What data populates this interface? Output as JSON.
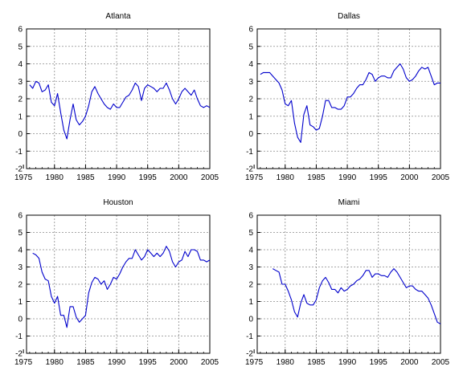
{
  "colors": {
    "line": "#0000cc",
    "grid": "#8a8a8a",
    "frame": "#000000"
  },
  "chart_data": [
    {
      "type": "line",
      "title": "Atlanta",
      "xlabel": "",
      "ylabel": "",
      "xlim": [
        1975.5,
        2005.0
      ],
      "ylim": [
        -2,
        6
      ],
      "xticks": [
        "1975",
        "1980",
        "1985",
        "1990",
        "1995",
        "2000",
        "2005"
      ],
      "yticks": [
        "-2",
        "-1",
        "0",
        "1",
        "2",
        "3",
        "4",
        "5",
        "6"
      ],
      "grid": true,
      "series": [
        {
          "x": [
            1976.0,
            1976.5,
            1977.0,
            1977.5,
            1978.0,
            1978.5,
            1979.0,
            1979.5,
            1980.0,
            1980.5,
            1981.0,
            1981.5,
            1982.0,
            1982.5,
            1983.0,
            1983.5,
            1984.0,
            1984.5,
            1985.0,
            1985.5,
            1986.0,
            1986.5,
            1987.0,
            1987.5,
            1988.0,
            1988.5,
            1989.0,
            1989.5,
            1990.0,
            1990.5,
            1991.0,
            1991.5,
            1992.0,
            1992.5,
            1993.0,
            1993.5,
            1994.0,
            1994.5,
            1995.0,
            1995.5,
            1996.0,
            1996.5,
            1997.0,
            1997.5,
            1998.0,
            1998.5,
            1999.0,
            1999.5,
            2000.0,
            2000.5,
            2001.0,
            2001.5,
            2002.0,
            2002.5,
            2003.0,
            2003.5,
            2004.0,
            2004.5,
            2005.0
          ],
          "y": [
            2.8,
            2.6,
            3.0,
            2.9,
            2.4,
            2.5,
            2.8,
            1.8,
            1.6,
            2.3,
            1.2,
            0.2,
            -0.3,
            0.8,
            1.7,
            0.8,
            0.5,
            0.7,
            1.0,
            1.6,
            2.4,
            2.7,
            2.3,
            2.0,
            1.7,
            1.5,
            1.4,
            1.7,
            1.5,
            1.5,
            1.8,
            2.1,
            2.2,
            2.5,
            2.9,
            2.7,
            1.9,
            2.6,
            2.8,
            2.7,
            2.6,
            2.4,
            2.6,
            2.6,
            2.9,
            2.5,
            2.0,
            1.7,
            2.0,
            2.4,
            2.6,
            2.4,
            2.2,
            2.5,
            2.0,
            1.6,
            1.5,
            1.6,
            1.5
          ]
        }
      ]
    },
    {
      "type": "line",
      "title": "Dallas",
      "xlabel": "",
      "ylabel": "",
      "xlim": [
        1975.5,
        2005.0
      ],
      "ylim": [
        -2,
        6
      ],
      "xticks": [
        "1975",
        "1980",
        "1985",
        "1990",
        "1995",
        "2000",
        "2005"
      ],
      "yticks": [
        "-2",
        "-1",
        "0",
        "1",
        "2",
        "3",
        "4",
        "5",
        "6"
      ],
      "grid": true,
      "series": [
        {
          "x": [
            1976.0,
            1976.5,
            1977.0,
            1977.5,
            1978.0,
            1978.5,
            1979.0,
            1979.5,
            1980.0,
            1980.5,
            1981.0,
            1981.5,
            1982.0,
            1982.5,
            1983.0,
            1983.5,
            1984.0,
            1984.5,
            1985.0,
            1985.5,
            1986.0,
            1986.5,
            1987.0,
            1987.5,
            1988.0,
            1988.5,
            1989.0,
            1989.5,
            1990.0,
            1990.5,
            1991.0,
            1991.5,
            1992.0,
            1992.5,
            1993.0,
            1993.5,
            1994.0,
            1994.5,
            1995.0,
            1995.5,
            1996.0,
            1996.5,
            1997.0,
            1997.5,
            1998.0,
            1998.5,
            1999.0,
            1999.5,
            2000.0,
            2000.5,
            2001.0,
            2001.5,
            2002.0,
            2002.5,
            2003.0,
            2003.5,
            2004.0,
            2004.5,
            2005.0
          ],
          "y": [
            3.4,
            3.5,
            3.5,
            3.5,
            3.3,
            3.1,
            2.9,
            2.5,
            1.7,
            1.6,
            1.9,
            0.6,
            -0.2,
            -0.5,
            1.1,
            1.6,
            0.5,
            0.4,
            0.2,
            0.3,
            1.0,
            1.9,
            1.9,
            1.5,
            1.5,
            1.4,
            1.4,
            1.6,
            2.1,
            2.1,
            2.3,
            2.6,
            2.8,
            2.8,
            3.1,
            3.5,
            3.4,
            3.0,
            3.2,
            3.3,
            3.3,
            3.2,
            3.2,
            3.6,
            3.8,
            4.0,
            3.7,
            3.2,
            3.0,
            3.1,
            3.3,
            3.6,
            3.8,
            3.7,
            3.8,
            3.3,
            2.8,
            2.9,
            2.9
          ]
        }
      ]
    },
    {
      "type": "line",
      "title": "Houston",
      "xlabel": "",
      "ylabel": "",
      "xlim": [
        1975.5,
        2005.0
      ],
      "ylim": [
        -2,
        6
      ],
      "xticks": [
        "1975",
        "1980",
        "1985",
        "1990",
        "1995",
        "2000",
        "2005"
      ],
      "yticks": [
        "-2",
        "-1",
        "0",
        "1",
        "2",
        "3",
        "4",
        "5",
        "6"
      ],
      "grid": true,
      "series": [
        {
          "x": [
            1976.5,
            1977.0,
            1977.5,
            1978.0,
            1978.5,
            1979.0,
            1979.5,
            1980.0,
            1980.5,
            1981.0,
            1981.5,
            1982.0,
            1982.5,
            1983.0,
            1983.5,
            1984.0,
            1984.5,
            1985.0,
            1985.5,
            1986.0,
            1986.5,
            1987.0,
            1987.5,
            1988.0,
            1988.5,
            1989.0,
            1989.5,
            1990.0,
            1990.5,
            1991.0,
            1991.5,
            1992.0,
            1992.5,
            1993.0,
            1993.5,
            1994.0,
            1994.5,
            1995.0,
            1995.5,
            1996.0,
            1996.5,
            1997.0,
            1997.5,
            1998.0,
            1998.5,
            1999.0,
            1999.5,
            2000.0,
            2000.5,
            2001.0,
            2001.5,
            2002.0,
            2002.5,
            2003.0,
            2003.5,
            2004.0,
            2004.5,
            2005.0
          ],
          "y": [
            3.8,
            3.7,
            3.5,
            2.7,
            2.3,
            2.2,
            1.3,
            0.9,
            1.3,
            0.2,
            0.2,
            -0.5,
            0.7,
            0.7,
            0.1,
            -0.2,
            0.0,
            0.2,
            1.5,
            2.1,
            2.4,
            2.3,
            2.0,
            2.2,
            1.7,
            2.0,
            2.4,
            2.3,
            2.6,
            3.0,
            3.3,
            3.5,
            3.5,
            4.0,
            3.7,
            3.4,
            3.6,
            4.0,
            3.8,
            3.6,
            3.8,
            3.6,
            3.8,
            4.2,
            3.9,
            3.3,
            3.0,
            3.3,
            3.4,
            3.9,
            3.6,
            4.0,
            4.0,
            3.9,
            3.4,
            3.4,
            3.3,
            3.4
          ]
        }
      ]
    },
    {
      "type": "line",
      "title": "Miami",
      "xlabel": "",
      "ylabel": "",
      "xlim": [
        1975.5,
        2005.0
      ],
      "ylim": [
        -2,
        6
      ],
      "xticks": [
        "1975",
        "1980",
        "1985",
        "1990",
        "1995",
        "2000",
        "2005"
      ],
      "yticks": [
        "-2",
        "-1",
        "0",
        "1",
        "2",
        "3",
        "4",
        "5",
        "6"
      ],
      "grid": true,
      "series": [
        {
          "x": [
            1978.0,
            1978.5,
            1979.0,
            1979.5,
            1980.0,
            1980.5,
            1981.0,
            1981.5,
            1982.0,
            1982.5,
            1983.0,
            1983.5,
            1984.0,
            1984.5,
            1985.0,
            1985.5,
            1986.0,
            1986.5,
            1987.0,
            1987.5,
            1988.0,
            1988.5,
            1989.0,
            1989.5,
            1990.0,
            1990.5,
            1991.0,
            1991.5,
            1992.0,
            1992.5,
            1993.0,
            1993.5,
            1994.0,
            1994.5,
            1995.0,
            1995.5,
            1996.0,
            1996.5,
            1997.0,
            1997.5,
            1998.0,
            1998.5,
            1999.0,
            1999.5,
            2000.0,
            2000.5,
            2001.0,
            2001.5,
            2002.0,
            2002.5,
            2003.0,
            2003.5,
            2004.0,
            2004.5,
            2005.0
          ],
          "y": [
            2.9,
            2.8,
            2.7,
            2.0,
            2.0,
            1.6,
            1.1,
            0.4,
            0.1,
            0.9,
            1.4,
            0.9,
            0.8,
            0.8,
            1.1,
            1.8,
            2.2,
            2.4,
            2.1,
            1.7,
            1.7,
            1.5,
            1.8,
            1.6,
            1.7,
            1.9,
            2.0,
            2.2,
            2.3,
            2.5,
            2.8,
            2.8,
            2.4,
            2.6,
            2.6,
            2.5,
            2.5,
            2.4,
            2.7,
            2.9,
            2.7,
            2.4,
            2.1,
            1.8,
            1.9,
            1.9,
            1.7,
            1.6,
            1.6,
            1.4,
            1.2,
            0.8,
            0.3,
            -0.2,
            -0.3
          ]
        }
      ]
    }
  ]
}
